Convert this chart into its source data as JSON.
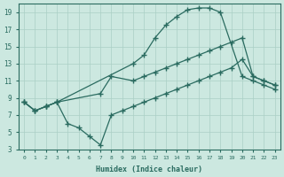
{
  "xlabel": "Humidex (Indice chaleur)",
  "bg_color": "#cce8e0",
  "line_color": "#2a6b60",
  "grid_color": "#aacfc5",
  "xlim": [
    -0.5,
    23.5
  ],
  "ylim": [
    3,
    20
  ],
  "xticks": [
    0,
    1,
    2,
    3,
    4,
    5,
    6,
    7,
    8,
    9,
    10,
    11,
    12,
    13,
    14,
    15,
    16,
    17,
    18,
    19,
    20,
    21,
    22,
    23
  ],
  "yticks": [
    3,
    5,
    7,
    9,
    11,
    13,
    15,
    17,
    19
  ],
  "curve1_x": [
    0,
    1,
    2,
    3,
    10,
    11,
    12,
    13,
    14,
    15,
    16,
    17,
    18,
    20,
    21,
    22,
    23
  ],
  "curve1_y": [
    8.5,
    7.5,
    8.0,
    8.5,
    13.0,
    14.0,
    16.0,
    17.5,
    18.5,
    19.3,
    19.5,
    19.5,
    19.0,
    11.5,
    11.0,
    10.5,
    10.0
  ],
  "curve2_x": [
    0,
    1,
    2,
    3,
    7,
    8,
    10,
    11,
    12,
    13,
    14,
    15,
    16,
    17,
    18,
    19,
    20,
    21,
    22,
    23
  ],
  "curve2_y": [
    8.5,
    7.5,
    8.0,
    8.5,
    9.5,
    11.5,
    11.0,
    11.5,
    12.0,
    12.5,
    13.0,
    13.5,
    14.0,
    14.5,
    15.0,
    15.5,
    16.0,
    11.5,
    11.0,
    10.5
  ],
  "curve3_x": [
    0,
    1,
    2,
    3,
    4,
    5,
    6,
    7,
    8,
    9,
    10,
    11,
    12,
    13,
    14,
    15,
    16,
    17,
    18,
    19,
    20,
    21,
    22,
    23
  ],
  "curve3_y": [
    8.5,
    7.5,
    8.0,
    8.5,
    6.0,
    5.5,
    4.5,
    3.5,
    7.0,
    7.5,
    8.0,
    8.5,
    9.0,
    9.5,
    10.0,
    10.5,
    11.0,
    11.5,
    12.0,
    12.5,
    13.5,
    11.5,
    11.0,
    10.5
  ]
}
